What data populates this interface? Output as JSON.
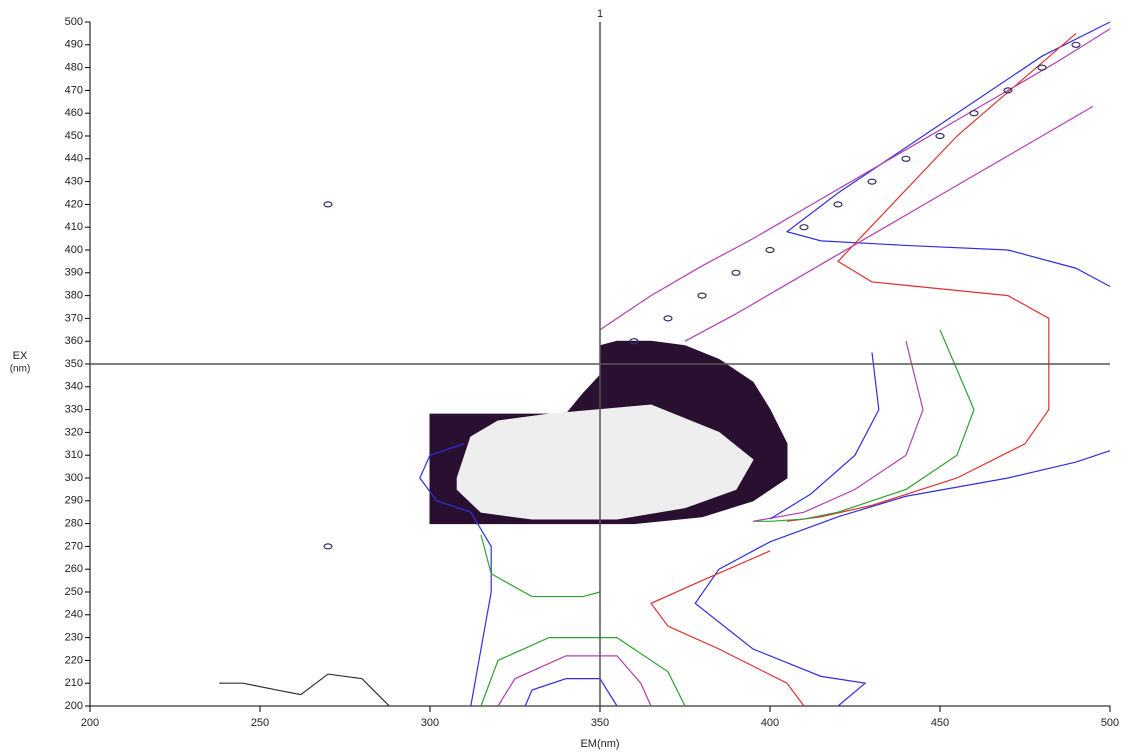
{
  "chart_data": {
    "type": "contour",
    "x_label": "EM(nm)",
    "y_label": [
      "EX",
      "(nm)"
    ],
    "xlim": [
      200,
      500
    ],
    "ylim": [
      200,
      500
    ],
    "xticks": [
      200,
      250,
      300,
      350,
      400,
      450,
      500
    ],
    "yticks": [
      200,
      210,
      220,
      230,
      240,
      250,
      260,
      270,
      280,
      290,
      300,
      310,
      320,
      330,
      340,
      350,
      360,
      370,
      380,
      390,
      400,
      410,
      420,
      430,
      440,
      450,
      460,
      470,
      480,
      490,
      500
    ],
    "cursor": {
      "x": 350,
      "y": 350,
      "label": "1"
    },
    "filled": [
      {
        "color": "#2a1030",
        "x": [
          300,
          300,
          320,
          340,
          345,
          350,
          350,
          355,
          365,
          375,
          385,
          395,
          400,
          405,
          405,
          395,
          380,
          360,
          340,
          320
        ],
        "y": [
          280,
          328,
          328,
          328,
          337,
          345,
          358,
          360,
          360,
          358,
          352,
          342,
          330,
          315,
          300,
          290,
          283,
          280,
          280,
          280
        ]
      },
      {
        "color": "#eeeeee",
        "x": [
          308,
          312,
          320,
          335,
          350,
          365,
          385,
          395,
          390,
          375,
          355,
          330,
          315,
          308
        ],
        "y": [
          300,
          318,
          325,
          328,
          330,
          332,
          320,
          308,
          295,
          287,
          282,
          282,
          285,
          295
        ]
      }
    ],
    "series": [
      {
        "color": "#3030e0",
        "x": [
          500,
          490,
          470,
          440,
          415,
          405,
          420,
          450,
          480,
          500
        ],
        "y": [
          384,
          392,
          400,
          402,
          404,
          408,
          425,
          455,
          485,
          500
        ]
      },
      {
        "color": "#e03030",
        "x": [
          490,
          455,
          420,
          430,
          470,
          482,
          482,
          475,
          455,
          430,
          415,
          405
        ],
        "y": [
          495,
          450,
          395,
          386,
          380,
          370,
          330,
          315,
          300,
          288,
          283,
          281
        ]
      },
      {
        "color": "#3030e0",
        "x": [
          500,
          490,
          470,
          440,
          420,
          400,
          385,
          378,
          395,
          415,
          428,
          420
        ],
        "y": [
          312,
          307,
          300,
          292,
          283,
          272,
          260,
          245,
          225,
          213,
          210,
          200
        ]
      },
      {
        "color": "#e03030",
        "x": [
          400,
          380,
          365,
          370,
          385,
          405,
          410
        ],
        "y": [
          268,
          255,
          245,
          235,
          225,
          210,
          200
        ]
      },
      {
        "color": "#30a030",
        "x": [
          450,
          460,
          455,
          440,
          420,
          410,
          400,
          395
        ],
        "y": [
          365,
          330,
          310,
          295,
          285,
          282,
          281,
          281
        ]
      },
      {
        "color": "#b040b0",
        "x": [
          440,
          445,
          440,
          425,
          410,
          395
        ],
        "y": [
          360,
          330,
          310,
          295,
          285,
          281
        ]
      },
      {
        "color": "#3030e0",
        "x": [
          430,
          432,
          425,
          412,
          400
        ],
        "y": [
          355,
          330,
          310,
          293,
          282
        ]
      },
      {
        "color": "#30a030",
        "x": [
          315,
          320,
          335,
          355,
          370,
          375
        ],
        "y": [
          200,
          220,
          230,
          230,
          215,
          200
        ]
      },
      {
        "color": "#b040b0",
        "x": [
          320,
          325,
          340,
          355,
          362,
          365
        ],
        "y": [
          200,
          212,
          222,
          222,
          210,
          200
        ]
      },
      {
        "color": "#3030e0",
        "x": [
          328,
          330,
          340,
          350,
          355
        ],
        "y": [
          200,
          207,
          212,
          212,
          200
        ]
      },
      {
        "color": "#303030",
        "x": [
          238,
          245,
          255,
          262,
          270,
          280,
          288
        ],
        "y": [
          210,
          210,
          207,
          205,
          214,
          212,
          200
        ]
      },
      {
        "color": "#3030e0",
        "x": [
          310,
          300,
          297,
          302,
          312,
          318,
          318,
          312
        ],
        "y": [
          315,
          310,
          300,
          290,
          285,
          270,
          250,
          200
        ]
      },
      {
        "color": "#30a030",
        "x": [
          315,
          318,
          330,
          345,
          350
        ],
        "y": [
          275,
          258,
          248,
          248,
          250
        ]
      },
      {
        "color": "#b040b0",
        "x": [
          350,
          365,
          380,
          395,
          410,
          425,
          440,
          455,
          470,
          485,
          500
        ],
        "y": [
          365,
          380,
          393,
          405,
          418,
          431,
          444,
          457,
          470,
          483,
          497
        ]
      },
      {
        "color": "#b040b0",
        "x": [
          375,
          390,
          405,
          420,
          435,
          450,
          465,
          480,
          495
        ],
        "y": [
          360,
          372,
          385,
          398,
          411,
          424,
          437,
          450,
          463
        ]
      }
    ],
    "spots": {
      "color": "#303060",
      "x": [
        270,
        270,
        360,
        370,
        380,
        390,
        400,
        410,
        420,
        430,
        440,
        450,
        460,
        470,
        480,
        490
      ],
      "y": [
        420,
        270,
        360,
        370,
        380,
        390,
        400,
        410,
        420,
        430,
        440,
        450,
        460,
        470,
        480,
        490
      ]
    }
  }
}
